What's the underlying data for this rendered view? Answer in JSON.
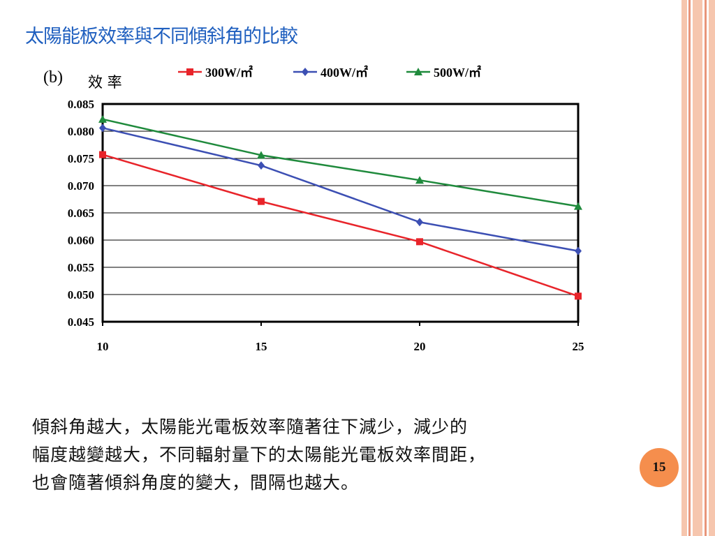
{
  "slide": {
    "title": "太陽能板效率與不同傾斜角的比較",
    "page_number": "15",
    "body_lines": [
      "傾斜角越大，太陽能光電板效率隨著往下減少，減少的",
      "幅度越變越大，不同輻射量下的太陽能光電板效率間距，",
      "也會隨著傾斜角度的變大，間隔也越大。"
    ]
  },
  "colors": {
    "title": "#1f5fbf",
    "stripe_a": "#f6c6ae",
    "stripe_b": "#e8957a",
    "badge": "#f58e4d"
  },
  "chart_data": {
    "type": "line",
    "panel_label": "(b)",
    "ylabel": "效 率",
    "xlabel": "",
    "x": [
      10,
      15,
      20,
      25
    ],
    "x_tick_labels": [
      "10",
      "15",
      "20",
      "25"
    ],
    "ylim": [
      0.045,
      0.085
    ],
    "y_tick_labels": [
      "0.085",
      "0.080",
      "0.075",
      "0.070",
      "0.065",
      "0.060",
      "0.055",
      "0.050",
      "0.045"
    ],
    "grid": "horizontal",
    "legend_position": "top",
    "series": [
      {
        "name": "300W/㎡",
        "color": "#e8242a",
        "marker": "square",
        "values": [
          0.0757,
          0.0671,
          0.0597,
          0.0497
        ]
      },
      {
        "name": "400W/㎡",
        "color": "#3c4fb3",
        "marker": "diamond",
        "values": [
          0.0806,
          0.0737,
          0.0633,
          0.058
        ]
      },
      {
        "name": "500W/㎡",
        "color": "#1f8a3c",
        "marker": "triangle",
        "values": [
          0.0822,
          0.0756,
          0.071,
          0.0662
        ]
      }
    ]
  }
}
